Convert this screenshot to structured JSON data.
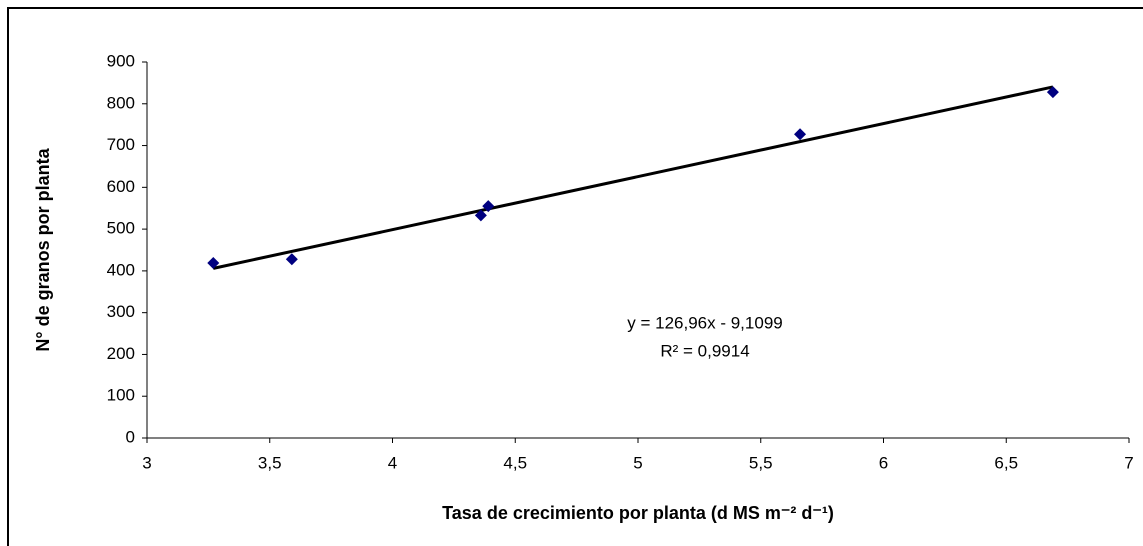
{
  "chart_data": {
    "type": "scatter",
    "xlabel": "Tasa de crecimiento por planta (d MS m⁻² d⁻¹)",
    "ylabel": "N° de granos por planta",
    "series": [
      {
        "color": "#000080",
        "x": [
          3.27,
          3.59,
          4.36,
          4.39,
          5.66,
          6.69
        ],
        "values": [
          419,
          428,
          533,
          555,
          727,
          828
        ]
      }
    ],
    "trendline": {
      "equation": "y = 126,96x - 9,1099",
      "r2_label": "R² = 0,9914",
      "slope": 126.96,
      "intercept": -9.1099,
      "r2": 0.9914,
      "color": "#000000"
    },
    "xlim": [
      3,
      7
    ],
    "xticks": [
      3,
      {
        "value": 3.5,
        "label": "3,5"
      },
      4,
      {
        "value": 4.5,
        "label": "4,5"
      },
      5,
      {
        "value": 5.5,
        "label": "5,5"
      },
      6,
      {
        "value": 6.5,
        "label": "6,5"
      },
      7
    ],
    "ylim": [
      0,
      900
    ],
    "yticks": [
      0,
      100,
      200,
      300,
      400,
      500,
      600,
      700,
      800,
      900
    ],
    "grid": false
  }
}
